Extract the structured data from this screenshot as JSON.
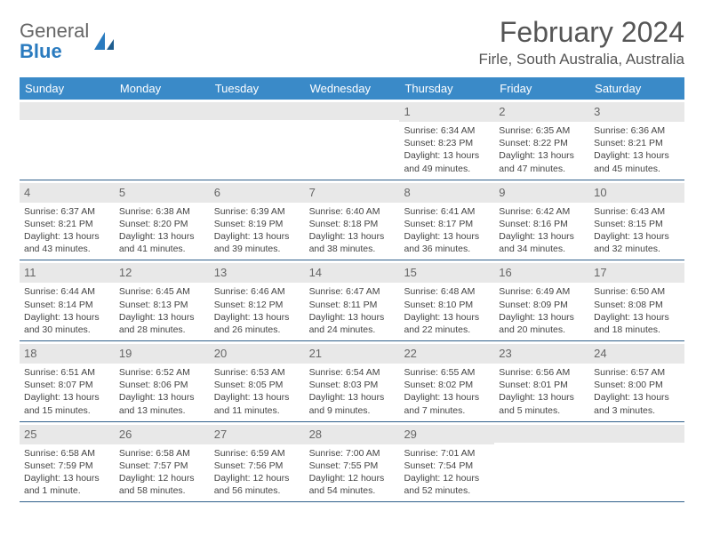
{
  "brand": {
    "word1": "General",
    "word2": "Blue"
  },
  "title": "February 2024",
  "location": "Firle, South Australia, Australia",
  "colors": {
    "header_bg": "#3a8ac8",
    "header_text": "#ffffff",
    "daynum_bg": "#e8e8e8",
    "week_border": "#2f5f8a",
    "body_text": "#444444",
    "title_text": "#555555",
    "logo_gray": "#666666",
    "logo_blue": "#2a7bbf"
  },
  "weekdays": [
    "Sunday",
    "Monday",
    "Tuesday",
    "Wednesday",
    "Thursday",
    "Friday",
    "Saturday"
  ],
  "weeks": [
    [
      null,
      null,
      null,
      null,
      {
        "n": "1",
        "sr": "Sunrise: 6:34 AM",
        "ss": "Sunset: 8:23 PM",
        "dl": "Daylight: 13 hours and 49 minutes."
      },
      {
        "n": "2",
        "sr": "Sunrise: 6:35 AM",
        "ss": "Sunset: 8:22 PM",
        "dl": "Daylight: 13 hours and 47 minutes."
      },
      {
        "n": "3",
        "sr": "Sunrise: 6:36 AM",
        "ss": "Sunset: 8:21 PM",
        "dl": "Daylight: 13 hours and 45 minutes."
      }
    ],
    [
      {
        "n": "4",
        "sr": "Sunrise: 6:37 AM",
        "ss": "Sunset: 8:21 PM",
        "dl": "Daylight: 13 hours and 43 minutes."
      },
      {
        "n": "5",
        "sr": "Sunrise: 6:38 AM",
        "ss": "Sunset: 8:20 PM",
        "dl": "Daylight: 13 hours and 41 minutes."
      },
      {
        "n": "6",
        "sr": "Sunrise: 6:39 AM",
        "ss": "Sunset: 8:19 PM",
        "dl": "Daylight: 13 hours and 39 minutes."
      },
      {
        "n": "7",
        "sr": "Sunrise: 6:40 AM",
        "ss": "Sunset: 8:18 PM",
        "dl": "Daylight: 13 hours and 38 minutes."
      },
      {
        "n": "8",
        "sr": "Sunrise: 6:41 AM",
        "ss": "Sunset: 8:17 PM",
        "dl": "Daylight: 13 hours and 36 minutes."
      },
      {
        "n": "9",
        "sr": "Sunrise: 6:42 AM",
        "ss": "Sunset: 8:16 PM",
        "dl": "Daylight: 13 hours and 34 minutes."
      },
      {
        "n": "10",
        "sr": "Sunrise: 6:43 AM",
        "ss": "Sunset: 8:15 PM",
        "dl": "Daylight: 13 hours and 32 minutes."
      }
    ],
    [
      {
        "n": "11",
        "sr": "Sunrise: 6:44 AM",
        "ss": "Sunset: 8:14 PM",
        "dl": "Daylight: 13 hours and 30 minutes."
      },
      {
        "n": "12",
        "sr": "Sunrise: 6:45 AM",
        "ss": "Sunset: 8:13 PM",
        "dl": "Daylight: 13 hours and 28 minutes."
      },
      {
        "n": "13",
        "sr": "Sunrise: 6:46 AM",
        "ss": "Sunset: 8:12 PM",
        "dl": "Daylight: 13 hours and 26 minutes."
      },
      {
        "n": "14",
        "sr": "Sunrise: 6:47 AM",
        "ss": "Sunset: 8:11 PM",
        "dl": "Daylight: 13 hours and 24 minutes."
      },
      {
        "n": "15",
        "sr": "Sunrise: 6:48 AM",
        "ss": "Sunset: 8:10 PM",
        "dl": "Daylight: 13 hours and 22 minutes."
      },
      {
        "n": "16",
        "sr": "Sunrise: 6:49 AM",
        "ss": "Sunset: 8:09 PM",
        "dl": "Daylight: 13 hours and 20 minutes."
      },
      {
        "n": "17",
        "sr": "Sunrise: 6:50 AM",
        "ss": "Sunset: 8:08 PM",
        "dl": "Daylight: 13 hours and 18 minutes."
      }
    ],
    [
      {
        "n": "18",
        "sr": "Sunrise: 6:51 AM",
        "ss": "Sunset: 8:07 PM",
        "dl": "Daylight: 13 hours and 15 minutes."
      },
      {
        "n": "19",
        "sr": "Sunrise: 6:52 AM",
        "ss": "Sunset: 8:06 PM",
        "dl": "Daylight: 13 hours and 13 minutes."
      },
      {
        "n": "20",
        "sr": "Sunrise: 6:53 AM",
        "ss": "Sunset: 8:05 PM",
        "dl": "Daylight: 13 hours and 11 minutes."
      },
      {
        "n": "21",
        "sr": "Sunrise: 6:54 AM",
        "ss": "Sunset: 8:03 PM",
        "dl": "Daylight: 13 hours and 9 minutes."
      },
      {
        "n": "22",
        "sr": "Sunrise: 6:55 AM",
        "ss": "Sunset: 8:02 PM",
        "dl": "Daylight: 13 hours and 7 minutes."
      },
      {
        "n": "23",
        "sr": "Sunrise: 6:56 AM",
        "ss": "Sunset: 8:01 PM",
        "dl": "Daylight: 13 hours and 5 minutes."
      },
      {
        "n": "24",
        "sr": "Sunrise: 6:57 AM",
        "ss": "Sunset: 8:00 PM",
        "dl": "Daylight: 13 hours and 3 minutes."
      }
    ],
    [
      {
        "n": "25",
        "sr": "Sunrise: 6:58 AM",
        "ss": "Sunset: 7:59 PM",
        "dl": "Daylight: 13 hours and 1 minute."
      },
      {
        "n": "26",
        "sr": "Sunrise: 6:58 AM",
        "ss": "Sunset: 7:57 PM",
        "dl": "Daylight: 12 hours and 58 minutes."
      },
      {
        "n": "27",
        "sr": "Sunrise: 6:59 AM",
        "ss": "Sunset: 7:56 PM",
        "dl": "Daylight: 12 hours and 56 minutes."
      },
      {
        "n": "28",
        "sr": "Sunrise: 7:00 AM",
        "ss": "Sunset: 7:55 PM",
        "dl": "Daylight: 12 hours and 54 minutes."
      },
      {
        "n": "29",
        "sr": "Sunrise: 7:01 AM",
        "ss": "Sunset: 7:54 PM",
        "dl": "Daylight: 12 hours and 52 minutes."
      },
      null,
      null
    ]
  ]
}
